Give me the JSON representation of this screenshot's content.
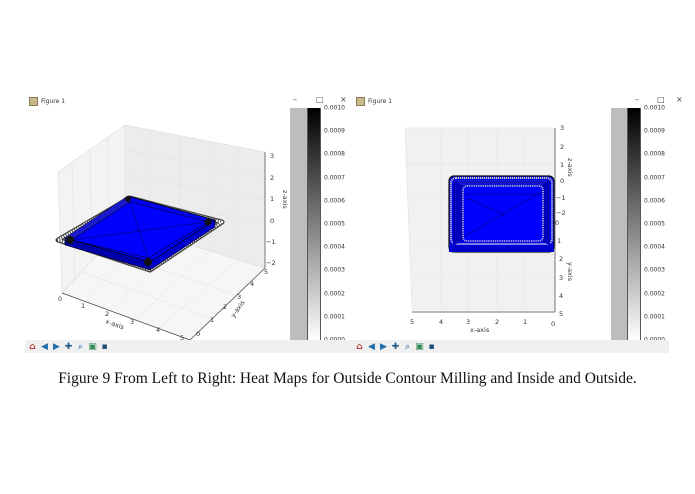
{
  "figures": [
    {
      "window_title": "Figure 1",
      "controls": [
        "–",
        "□",
        "×"
      ],
      "axes": {
        "x_label": "x-axis",
        "y_label": "y-axis",
        "z_label": "z-axis",
        "x_ticks": [
          "0",
          "1",
          "2",
          "3",
          "4",
          "5"
        ],
        "y_ticks": [
          "0",
          "1",
          "2",
          "3",
          "4",
          "5"
        ],
        "z_ticks": [
          "3",
          "2",
          "1",
          "0",
          "−1",
          "−2"
        ]
      },
      "colorbar_ticks": [
        "0.0010",
        "0.0009",
        "0.0008",
        "0.0007",
        "0.0006",
        "0.0005",
        "0.0004",
        "0.0003",
        "0.0002",
        "0.0001",
        "0.0000"
      ]
    },
    {
      "window_title": "Figure 1",
      "controls": [
        "–",
        "□",
        "×"
      ],
      "axes": {
        "x_label": "x-axis",
        "y_label": "y-axis",
        "z_label": "z-axis",
        "x_ticks": [
          "5",
          "4",
          "3",
          "2",
          "1",
          "0"
        ],
        "y_ticks": [
          "0",
          "1",
          "2",
          "3",
          "4",
          "5"
        ],
        "z_ticks": [
          "3",
          "2",
          "1",
          "0",
          "−1",
          "−2"
        ]
      },
      "colorbar_ticks": [
        "0.0010",
        "0.0009",
        "0.0008",
        "0.0007",
        "0.0006",
        "0.0005",
        "0.0004",
        "0.0003",
        "0.0002",
        "0.0001",
        "0.0000"
      ]
    }
  ],
  "toolbar_icons": [
    "home-icon",
    "back-icon",
    "forward-icon",
    "pan-icon",
    "zoom-icon",
    "subplots-icon",
    "save-icon"
  ],
  "colors": {
    "surface": "#0000ff",
    "colormap": "gray_r"
  },
  "caption": "Figure 9 From Left to Right: Heat Maps for Outside Contour Milling and Inside and Outside."
}
